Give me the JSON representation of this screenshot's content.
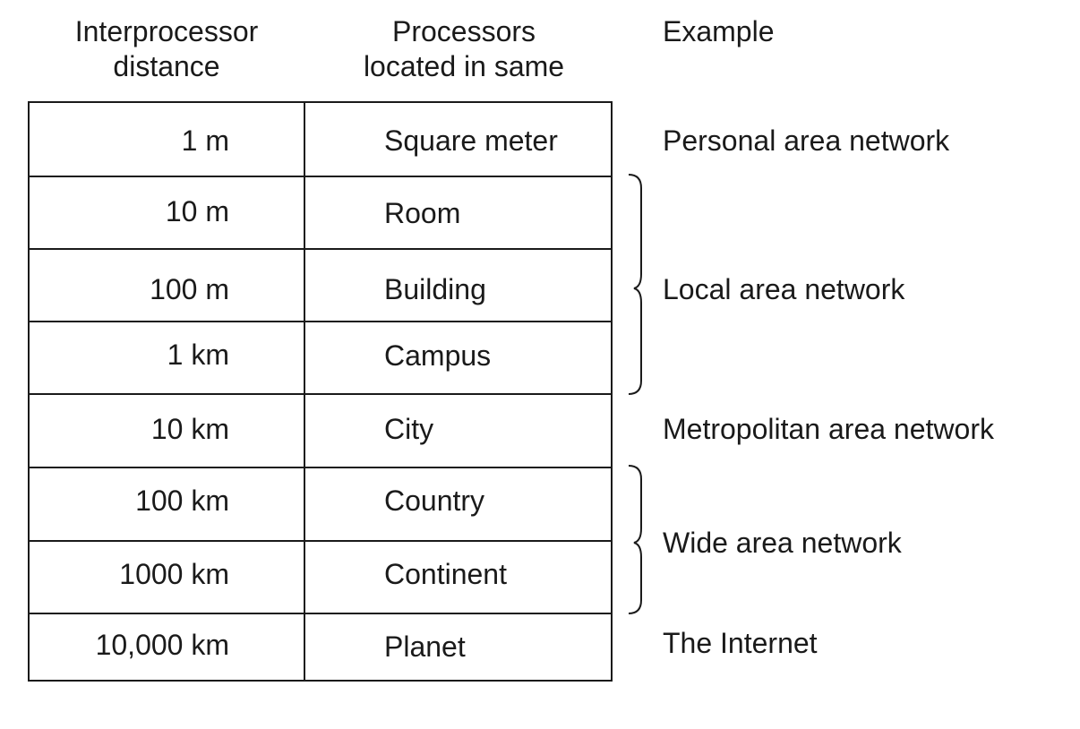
{
  "headers": {
    "distance_line1": "Interprocessor",
    "distance_line2": "distance",
    "located_line1": "Processors",
    "located_line2": "located in same",
    "example": "Example"
  },
  "rows": [
    {
      "distance": "1 m",
      "located": "Square meter"
    },
    {
      "distance": "10 m",
      "located": "Room"
    },
    {
      "distance": "100 m",
      "located": "Building"
    },
    {
      "distance": "1 km",
      "located": "Campus"
    },
    {
      "distance": "10 km",
      "located": "City"
    },
    {
      "distance": "100 km",
      "located": "Country"
    },
    {
      "distance": "1000 km",
      "located": "Continent"
    },
    {
      "distance": "10,000 km",
      "located": "Planet"
    }
  ],
  "examples": {
    "personal": "Personal area network",
    "local": "Local area network",
    "metropolitan": "Metropolitan area network",
    "wide": "Wide area network",
    "internet": "The Internet"
  }
}
